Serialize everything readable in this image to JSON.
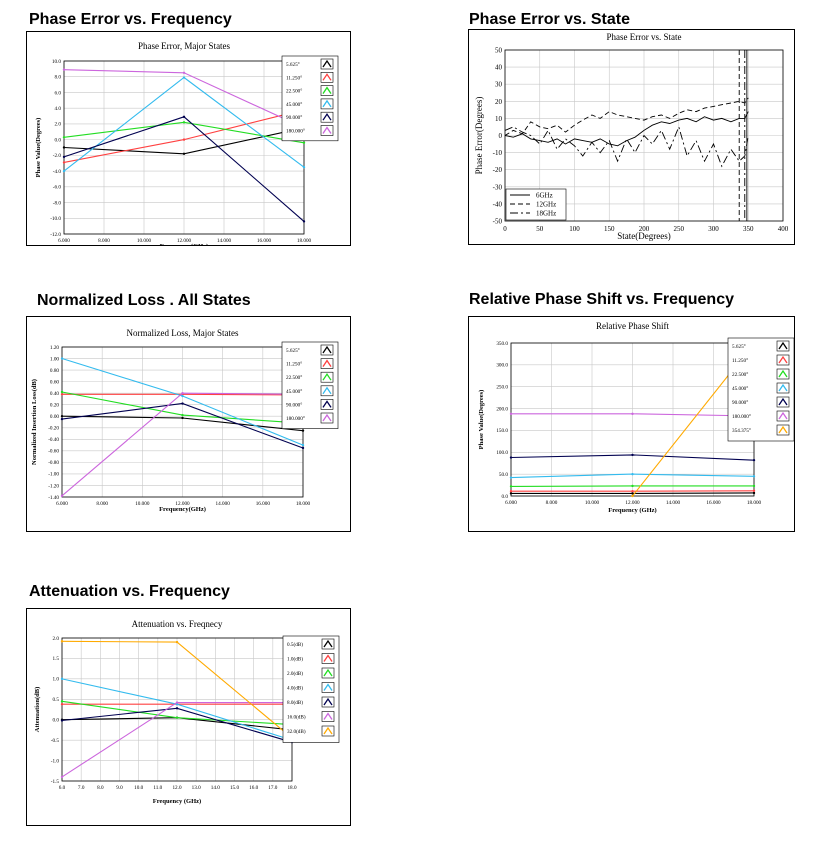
{
  "sections": {
    "s1": "Phase Error vs. Frequency",
    "s2": "Phase Error vs. State",
    "s3": "Normalized Loss . All States",
    "s4": "Relative Phase Shift vs. Frequency",
    "s5": "Attenuation vs.  Frequency"
  },
  "chart_data": [
    {
      "id": "pe",
      "type": "line",
      "title": "Phase Error, Major States",
      "xlabel": "Frequency (GHz)",
      "ylabel": "Phase Value(Degrees)",
      "xlim": [
        6,
        18
      ],
      "ylim": [
        -12,
        10
      ],
      "x_ticks": [
        6,
        8,
        10,
        12,
        14,
        16,
        18
      ],
      "x_tick_labels": [
        "6.000",
        "8.000",
        "10.000",
        "12.000",
        "14.000",
        "16.000",
        "18.000"
      ],
      "y_ticks": [
        10,
        8,
        6,
        4,
        2,
        0,
        -2,
        -4,
        -6,
        -8,
        -10,
        -12
      ],
      "y_tick_labels": [
        "10.0",
        "8.0",
        "6.0",
        "4.0",
        "2.0",
        "0.0",
        "-2.0",
        "-4.0",
        "-6.0",
        "-8.0",
        "-10.0",
        "-12.0"
      ],
      "x": [
        6,
        12,
        18
      ],
      "grid": true,
      "series": [
        {
          "name": "5.625°",
          "color": "#000000",
          "values": [
            -1,
            -1.8,
            1.5
          ]
        },
        {
          "name": "11.250°",
          "color": "#ff4040",
          "values": [
            -2.9,
            0,
            3.8
          ]
        },
        {
          "name": "22.500°",
          "color": "#22dd22",
          "values": [
            0.3,
            2.2,
            -0.4
          ]
        },
        {
          "name": "45.000°",
          "color": "#33bbee",
          "values": [
            -4,
            7.9,
            -3.5
          ]
        },
        {
          "name": "90.000°",
          "color": "#000050",
          "values": [
            -2.2,
            2.9,
            -10.4
          ]
        },
        {
          "name": "180.000°",
          "color": "#cc66dd",
          "values": [
            8.9,
            8.5,
            1.5
          ]
        }
      ]
    },
    {
      "id": "ps",
      "type": "line",
      "title": "Phase Error vs. State",
      "xlabel": "State(Degrees)",
      "ylabel": "Phase Error(Degrees)",
      "xlim": [
        0,
        400
      ],
      "ylim": [
        -50,
        50
      ],
      "x_ticks": [
        0,
        50,
        100,
        150,
        200,
        250,
        300,
        350,
        400
      ],
      "x_tick_labels": [
        "0",
        "50",
        "100",
        "150",
        "200",
        "250",
        "300",
        "350",
        "400"
      ],
      "y_ticks": [
        50,
        40,
        30,
        20,
        10,
        0,
        -10,
        -20,
        -30,
        -40,
        -50
      ],
      "y_tick_labels": [
        "50",
        "40",
        "30",
        "20",
        "10",
        "0",
        "-10",
        "-20",
        "-30",
        "-40",
        "-50"
      ],
      "grid": true,
      "legend": "bottom-left",
      "x": [
        0,
        12,
        25,
        37,
        50,
        62,
        75,
        87,
        100,
        112,
        125,
        137,
        150,
        162,
        175,
        187,
        200,
        212,
        225,
        237,
        250,
        262,
        275,
        287,
        300,
        312,
        325,
        337,
        345,
        350
      ],
      "series": [
        {
          "name": "6GHz",
          "dash": "none",
          "values": [
            0,
            -1,
            1,
            -2,
            -3,
            -4,
            -2,
            -5,
            -2,
            -3,
            -4,
            -2,
            -5,
            -6,
            -3,
            -1,
            3,
            6,
            8,
            7,
            9,
            10,
            8,
            11,
            9,
            10,
            8,
            10,
            10,
            14
          ]
        },
        {
          "name": "12GHz",
          "dash": "5,3",
          "values": [
            0,
            3,
            1,
            8,
            5,
            4,
            6,
            2,
            6,
            9,
            12,
            10,
            14,
            12,
            11,
            10,
            9,
            11,
            12,
            10,
            13,
            15,
            14,
            16,
            17,
            18,
            19,
            20,
            19,
            22
          ]
        },
        {
          "name": "18GHz",
          "dash": "8,3,2,3",
          "values": [
            3,
            5,
            2,
            0,
            -5,
            3,
            -8,
            -2,
            -6,
            -12,
            -4,
            -10,
            -3,
            -15,
            -2,
            -10,
            0,
            -5,
            3,
            -8,
            5,
            -12,
            -3,
            -15,
            -5,
            -18,
            -8,
            -15,
            -12,
            0
          ]
        }
      ],
      "drops": [
        {
          "x": 337,
          "dash": "5,3"
        },
        {
          "x": 345,
          "dash": "8,3,2,3"
        },
        {
          "x": 348,
          "dash": "none"
        }
      ]
    },
    {
      "id": "nl",
      "type": "line",
      "title": "Normalized Loss, Major States",
      "xlabel": "Frequency(GHz)",
      "ylabel": "Normalized Insertion Loss(dB)",
      "xlim": [
        6,
        18
      ],
      "ylim": [
        -1.4,
        1.2
      ],
      "x_ticks": [
        6,
        8,
        10,
        12,
        14,
        16,
        18
      ],
      "x_tick_labels": [
        "6.000",
        "8.000",
        "10.000",
        "12.000",
        "14.000",
        "16.000",
        "18.000"
      ],
      "y_ticks": [
        1.2,
        1.0,
        0.8,
        0.6,
        0.4,
        0.2,
        0,
        -0.2,
        -0.4,
        -0.6,
        -0.8,
        -1.0,
        -1.2,
        -1.4
      ],
      "y_tick_labels": [
        "1.20",
        "1.00",
        "0.80",
        "0.60",
        "0.40",
        "0.20",
        "0.00",
        "-0.20",
        "-0.40",
        "-0.60",
        "-0.80",
        "-1.00",
        "-1.20",
        "-1.40"
      ],
      "x": [
        6,
        12,
        18
      ],
      "grid": true,
      "series": [
        {
          "name": "5.625°",
          "color": "#000000",
          "values": [
            0,
            -0.03,
            -0.25
          ]
        },
        {
          "name": "11.250°",
          "color": "#ff4040",
          "values": [
            0.38,
            0.38,
            0.37
          ]
        },
        {
          "name": "22.500°",
          "color": "#22dd22",
          "values": [
            0.42,
            0.02,
            -0.12
          ]
        },
        {
          "name": "45.000°",
          "color": "#33bbee",
          "values": [
            1.0,
            0.35,
            -0.5
          ]
        },
        {
          "name": "90.000°",
          "color": "#000050",
          "values": [
            -0.05,
            0.22,
            -0.55
          ]
        },
        {
          "name": "180.000°",
          "color": "#cc66dd",
          "values": [
            -1.38,
            0.4,
            0.38
          ]
        }
      ]
    },
    {
      "id": "rp",
      "type": "line",
      "title": "Relative Phase Shift",
      "xlabel": "Frequency (GHz)",
      "ylabel": "Phase Value(Degrees)",
      "xlim": [
        6,
        18
      ],
      "ylim": [
        0,
        350
      ],
      "x_ticks": [
        6,
        8,
        10,
        12,
        14,
        16,
        18
      ],
      "x_tick_labels": [
        "6.000",
        "8.000",
        "10.000",
        "12.000",
        "14.000",
        "16.000",
        "18.000"
      ],
      "y_ticks": [
        350,
        300,
        250,
        200,
        150,
        100,
        50,
        0
      ],
      "y_tick_labels": [
        "350.0",
        "300.0",
        "250.0",
        "200.0",
        "150.0",
        "100.0",
        "50.0",
        "0.0"
      ],
      "x": [
        6,
        12,
        18
      ],
      "grid": true,
      "series": [
        {
          "name": "5.625°",
          "color": "#000000",
          "values": [
            6,
            6,
            7
          ]
        },
        {
          "name": "11.250°",
          "color": "#ff4040",
          "values": [
            11,
            11,
            12
          ]
        },
        {
          "name": "22.500°",
          "color": "#22dd22",
          "values": [
            22,
            23,
            23
          ]
        },
        {
          "name": "45.000°",
          "color": "#33bbee",
          "values": [
            42,
            50,
            45
          ]
        },
        {
          "name": "90.000°",
          "color": "#000050",
          "values": [
            88,
            94,
            82
          ]
        },
        {
          "name": "180.000°",
          "color": "#cc66dd",
          "values": [
            188,
            188,
            183
          ]
        },
        {
          "name": "354.375°",
          "color": "#ffaa00",
          "values": [
            null,
            0,
            350
          ]
        }
      ]
    },
    {
      "id": "at",
      "type": "line",
      "title": "Attenuation vs. Freqnecy",
      "xlabel": "Frequency (GHz)",
      "ylabel": "Attenuation(dB)",
      "xlim": [
        6,
        18
      ],
      "ylim": [
        -1.5,
        2.0
      ],
      "x_ticks": [
        6,
        7,
        8,
        9,
        10,
        11,
        12,
        13,
        14,
        15,
        16,
        17,
        18
      ],
      "x_tick_labels": [
        "6.0",
        "7.0",
        "8.0",
        "9.0",
        "10.0",
        "11.0",
        "12.0",
        "13.0",
        "14.0",
        "15.0",
        "16.0",
        "17.0",
        "18.0"
      ],
      "y_ticks": [
        2.0,
        1.5,
        1.0,
        0.5,
        0,
        -0.5,
        -1.0,
        -1.5
      ],
      "y_tick_labels": [
        "2.0",
        "1.5",
        "1.0",
        "0.5",
        "0.0",
        "-0.5",
        "-1.0",
        "-1.5"
      ],
      "x": [
        6,
        12,
        18
      ],
      "grid": true,
      "series": [
        {
          "name": "0.5(dB)",
          "color": "#000000",
          "values": [
            0,
            0.05,
            -0.25
          ]
        },
        {
          "name": "1.0(dB)",
          "color": "#ff4040",
          "values": [
            0.38,
            0.38,
            0.38
          ]
        },
        {
          "name": "2.0(dB)",
          "color": "#22dd22",
          "values": [
            0.45,
            0.05,
            -0.12
          ]
        },
        {
          "name": "4.0(dB)",
          "color": "#33bbee",
          "values": [
            1.0,
            0.38,
            -0.5
          ]
        },
        {
          "name": "8.0(dB)",
          "color": "#000050",
          "values": [
            -0.02,
            0.28,
            -0.55
          ]
        },
        {
          "name": "16.0(dB)",
          "color": "#cc66dd",
          "values": [
            -1.4,
            0.42,
            0.42
          ]
        },
        {
          "name": "32.0(dB)",
          "color": "#ffaa00",
          "values": [
            1.92,
            1.9,
            -0.45
          ]
        }
      ]
    }
  ]
}
